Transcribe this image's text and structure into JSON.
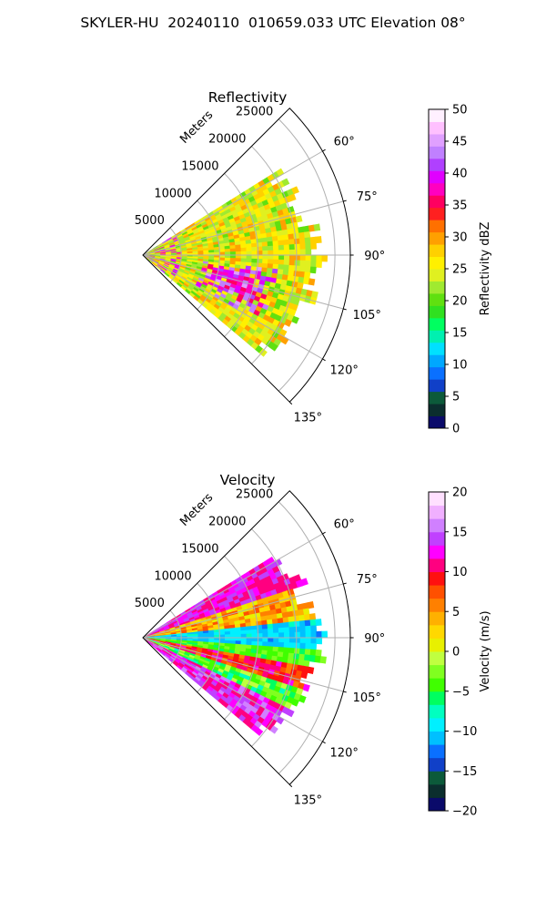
{
  "figure_title": "SKYLER-HU  20240110  010659.033 UTC Elevation 08°",
  "colors": {
    "reflectivity_scale": [
      "#0a0a6a",
      "#0b2e2e",
      "#0c5a3a",
      "#1040c8",
      "#0a70ff",
      "#00a8ff",
      "#00e0ff",
      "#00f0b0",
      "#00ff60",
      "#30e020",
      "#60e010",
      "#a0ea30",
      "#e0f020",
      "#fff000",
      "#ffd000",
      "#ffa000",
      "#ff7000",
      "#ff2020",
      "#ff0060",
      "#ff00c0",
      "#e000ff",
      "#b040ff",
      "#c080ff",
      "#e0a0ff",
      "#ffc0ff",
      "#fff0ff"
    ],
    "velocity_scale": [
      "#0a0a6a",
      "#0b2e2e",
      "#0c5a3a",
      "#1040c8",
      "#0a70ff",
      "#00c0ff",
      "#00f0ff",
      "#00ffc0",
      "#00ff60",
      "#40ff00",
      "#80ff20",
      "#c0ff40",
      "#e8f000",
      "#ffd800",
      "#ffb000",
      "#ff8000",
      "#ff5000",
      "#ff1010",
      "#ff0080",
      "#ff00ff",
      "#c040ff",
      "#d080ff",
      "#f0b0ff",
      "#ffe0ff"
    ]
  },
  "chart_data": [
    {
      "type": "heatmap",
      "projection": "polar-sector",
      "title": "Reflectivity",
      "radial_label": "Meters",
      "radial_ticks": [
        "5000",
        "10000",
        "15000",
        "20000",
        "25000"
      ],
      "radial_range": [
        0,
        27000
      ],
      "angle_ticks": [
        "60°",
        "75°",
        "90°",
        "105°",
        "120°",
        "135°"
      ],
      "angle_range_deg": [
        45,
        135
      ],
      "colorbar": {
        "label": "Reflectivity dBZ",
        "range": [
          0,
          50
        ],
        "ticks": [
          "0",
          "5",
          "10",
          "15",
          "20",
          "25",
          "30",
          "35",
          "40",
          "45",
          "50"
        ]
      },
      "field_summary": {
        "data_azimuth_range_deg": [
          58,
          130
        ],
        "max_range_m": 24000,
        "typical_dbz": [
          20,
          30
        ],
        "high_core_dbz": [
          35,
          45
        ],
        "high_core_azimuth_deg": [
          95,
          120
        ],
        "high_core_range_m": [
          8000,
          18000
        ]
      }
    },
    {
      "type": "heatmap",
      "projection": "polar-sector",
      "title": "Velocity",
      "radial_label": "Meters",
      "radial_ticks": [
        "5000",
        "10000",
        "15000",
        "20000",
        "25000"
      ],
      "radial_range": [
        0,
        27000
      ],
      "angle_ticks": [
        "60°",
        "75°",
        "90°",
        "105°",
        "120°",
        "135°"
      ],
      "angle_range_deg": [
        45,
        135
      ],
      "colorbar": {
        "label": "Velocity (m/s)",
        "range": [
          -20,
          20
        ],
        "ticks": [
          "−20",
          "−15",
          "−10",
          "−5",
          "0",
          "5",
          "10",
          "15",
          "20"
        ]
      },
      "field_summary": {
        "data_azimuth_range_deg": [
          58,
          130
        ],
        "max_range_m": 24000,
        "bands": [
          {
            "azimuth_deg": [
              58,
              72
            ],
            "velocity_ms": [
              10,
              15
            ]
          },
          {
            "azimuth_deg": [
              72,
              84
            ],
            "velocity_ms": [
              0,
              8
            ]
          },
          {
            "azimuth_deg": [
              84,
              94
            ],
            "velocity_ms": [
              -12,
              -8
            ]
          },
          {
            "azimuth_deg": [
              94,
              100
            ],
            "velocity_ms": [
              -6,
              -2
            ]
          },
          {
            "azimuth_deg": [
              100,
              108
            ],
            "velocity_ms": [
              6,
              12
            ]
          },
          {
            "azimuth_deg": [
              108,
              116
            ],
            "velocity_ms": [
              -8,
              0
            ]
          },
          {
            "azimuth_deg": [
              116,
              130
            ],
            "velocity_ms": [
              10,
              16
            ]
          }
        ]
      }
    }
  ]
}
